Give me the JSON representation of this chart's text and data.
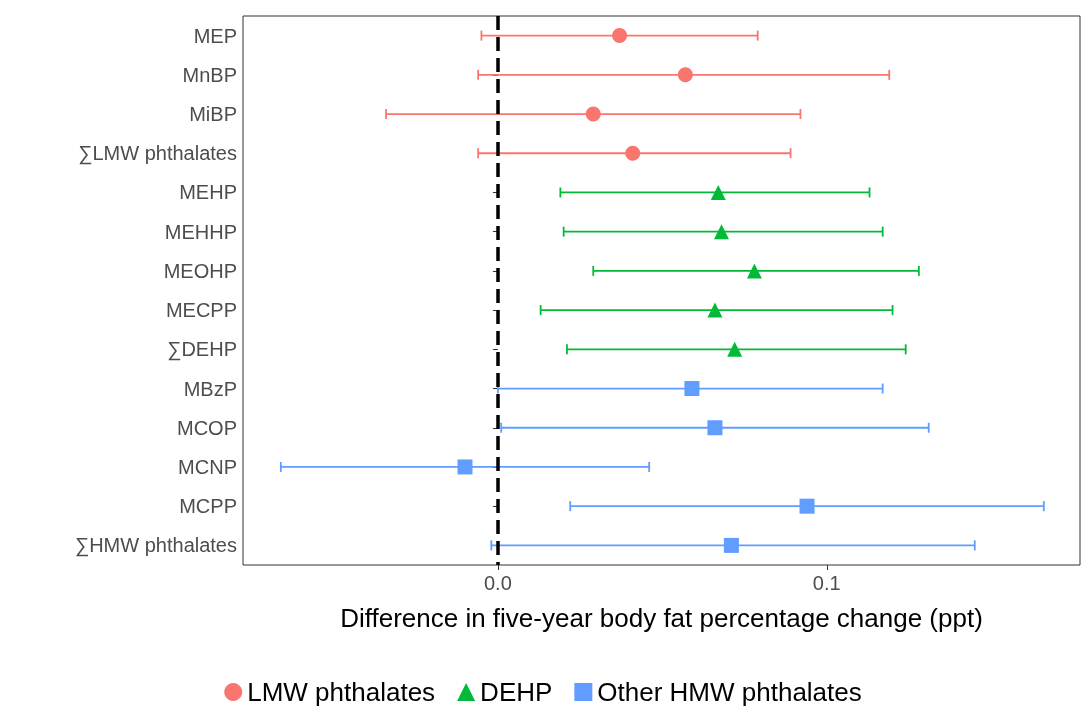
{
  "chart_data": {
    "type": "scatter",
    "orientation": "horizontal",
    "xlabel": "Difference in five-year body fat percentage change (ppt)",
    "categories": [
      "MEP",
      "MnBP",
      "MiBP",
      "∑LMW phthalates",
      "MEHP",
      "MEHHP",
      "MEOHP",
      "MECPP",
      "∑DEHP",
      "MBzP",
      "MCOP",
      "MCNP",
      "MCPP",
      "∑HMW phthalates"
    ],
    "series": [
      {
        "name": "LMW phthalates",
        "color": "#f8766d",
        "marker": "circle",
        "values": [
          0.037,
          0.057,
          0.029,
          0.041,
          null,
          null,
          null,
          null,
          null,
          null,
          null,
          null,
          null,
          null
        ],
        "errors": [
          [
            -0.005,
            0.079
          ],
          [
            -0.006,
            0.119
          ],
          [
            -0.034,
            0.092
          ],
          [
            -0.006,
            0.089
          ],
          null,
          null,
          null,
          null,
          null,
          null,
          null,
          null,
          null,
          null
        ]
      },
      {
        "name": "DEHP",
        "color": "#00ba38",
        "marker": "triangle",
        "values": [
          null,
          null,
          null,
          null,
          0.067,
          0.068,
          0.078,
          0.066,
          0.072,
          null,
          null,
          null,
          null,
          null
        ],
        "errors": [
          null,
          null,
          null,
          null,
          [
            0.019,
            0.113
          ],
          [
            0.02,
            0.117
          ],
          [
            0.029,
            0.128
          ],
          [
            0.013,
            0.12
          ],
          [
            0.021,
            0.124
          ],
          null,
          null,
          null,
          null,
          null
        ]
      },
      {
        "name": "Other HMW phthalates",
        "color": "#619cff",
        "marker": "square",
        "values": [
          null,
          null,
          null,
          null,
          null,
          null,
          null,
          null,
          null,
          0.059,
          0.066,
          -0.01,
          0.094,
          0.071
        ],
        "errors": [
          null,
          null,
          null,
          null,
          null,
          null,
          null,
          null,
          null,
          [
            0.0,
            0.117
          ],
          [
            0.001,
            0.131
          ],
          [
            -0.066,
            0.046
          ],
          [
            0.022,
            0.166
          ],
          [
            -0.002,
            0.145
          ]
        ]
      }
    ],
    "xlim": [
      -0.0775,
      0.177
    ],
    "xticks": [
      {
        "value": 0,
        "label": "0.0"
      },
      {
        "value": 0.1,
        "label": "0.1"
      }
    ],
    "ref_lines": [
      {
        "axis": "x",
        "value": 0,
        "color": "#000000",
        "line_style": "dashed"
      }
    ],
    "grid": false,
    "legend": "bottom"
  }
}
